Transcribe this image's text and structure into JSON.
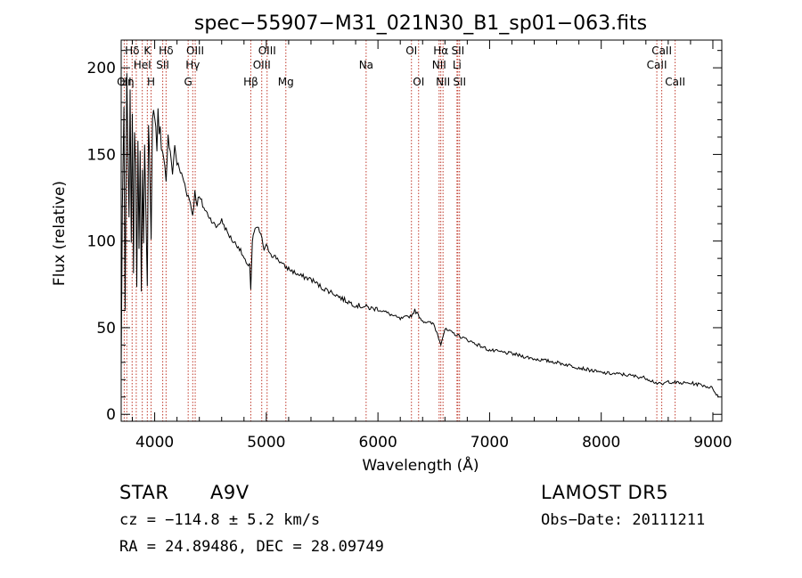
{
  "chart_data": {
    "type": "line",
    "title": "spec−55907−M31_021N30_B1_sp01−063.fits",
    "xlabel": "Wavelength (Å)",
    "ylabel": "Flux (relative)",
    "xlim": [
      3700,
      9080
    ],
    "ylim": [
      -4,
      216
    ],
    "xticks": [
      4000,
      5000,
      6000,
      7000,
      8000,
      9000
    ],
    "yticks": [
      0,
      50,
      100,
      150,
      200
    ],
    "series": [
      {
        "x": [
          3700,
          3710,
          3725,
          3735,
          3750,
          3760,
          3770,
          3780,
          3790,
          3800,
          3810,
          3820,
          3830,
          3840,
          3850,
          3860,
          3870,
          3880,
          3890,
          3900,
          3910,
          3920,
          3934,
          3945,
          3955,
          3968,
          3980,
          3990,
          4000,
          4010,
          4020,
          4030,
          4040,
          4050,
          4060,
          4080,
          4102,
          4120,
          4140,
          4160,
          4180,
          4200,
          4230,
          4260,
          4290,
          4320,
          4340,
          4360,
          4380,
          4400,
          4450,
          4500,
          4550,
          4600,
          4650,
          4700,
          4750,
          4800,
          4830,
          4850,
          4861,
          4875,
          4890,
          4920,
          4950,
          4980,
          5000,
          5050,
          5100,
          5150,
          5200,
          5300,
          5400,
          5500,
          5600,
          5700,
          5800,
          5895,
          5950,
          6000,
          6100,
          6200,
          6300,
          6330,
          6400,
          6500,
          6563,
          6600,
          6700,
          6800,
          6900,
          7000,
          7200,
          7400,
          7600,
          7800,
          8000,
          8200,
          8400,
          8500,
          8542,
          8600,
          8700,
          8800,
          8900,
          9000,
          9030,
          9050
        ],
        "y": [
          25,
          120,
          175,
          60,
          195,
          150,
          115,
          185,
          100,
          175,
          80,
          165,
          145,
          75,
          160,
          95,
          150,
          70,
          140,
          100,
          155,
          120,
          75,
          165,
          150,
          100,
          172,
          178,
          170,
          165,
          150,
          175,
          160,
          165,
          155,
          150,
          135,
          160,
          150,
          140,
          155,
          145,
          140,
          135,
          128,
          122,
          115,
          128,
          122,
          125,
          118,
          113,
          108,
          112,
          105,
          100,
          97,
          90,
          85,
          88,
          72,
          100,
          105,
          108,
          104,
          95,
          97,
          92,
          90,
          86,
          84,
          80,
          78,
          73,
          70,
          66,
          63,
          62,
          61,
          61,
          58,
          55,
          57,
          60,
          54,
          52,
          41,
          49,
          46,
          43,
          40,
          37,
          35,
          32,
          30,
          27,
          24,
          23,
          21,
          18,
          17,
          19,
          18,
          18,
          17,
          15,
          12,
          10
        ]
      }
    ],
    "lines": [
      {
        "wl": 3727,
        "label": "OII",
        "row": 3
      },
      {
        "wl": 3750,
        "label": "Hη",
        "row": 3
      },
      {
        "wl": 3798,
        "label": "Hδ",
        "row": 1
      },
      {
        "wl": 3835,
        "label": "",
        "row": 0
      },
      {
        "wl": 3889,
        "label": "HeI",
        "row": 2
      },
      {
        "wl": 3934,
        "label": "K",
        "row": 1
      },
      {
        "wl": 3968,
        "label": "H",
        "row": 3
      },
      {
        "wl": 4072,
        "label": "SII",
        "row": 2
      },
      {
        "wl": 4102,
        "label": "Hδ",
        "row": 1
      },
      {
        "wl": 4300,
        "label": "G",
        "row": 3
      },
      {
        "wl": 4341,
        "label": "Hγ",
        "row": 2
      },
      {
        "wl": 4363,
        "label": "OIII",
        "row": 1
      },
      {
        "wl": 4861,
        "label": "Hβ",
        "row": 3
      },
      {
        "wl": 4959,
        "label": "OIII",
        "row": 2
      },
      {
        "wl": 5007,
        "label": "OIII",
        "row": 1
      },
      {
        "wl": 5175,
        "label": "Mg",
        "row": 3
      },
      {
        "wl": 5894,
        "label": "Na",
        "row": 2
      },
      {
        "wl": 6300,
        "label": "OI",
        "row": 1
      },
      {
        "wl": 6364,
        "label": "OI",
        "row": 3
      },
      {
        "wl": 6548,
        "label": "NII",
        "row": 2
      },
      {
        "wl": 6563,
        "label": "Hα",
        "row": 1
      },
      {
        "wl": 6583,
        "label": "NII",
        "row": 3
      },
      {
        "wl": 6708,
        "label": "Li",
        "row": 2
      },
      {
        "wl": 6716,
        "label": "SII",
        "row": 1
      },
      {
        "wl": 6731,
        "label": "SII",
        "row": 3
      },
      {
        "wl": 8498,
        "label": "CaII",
        "row": 2
      },
      {
        "wl": 8542,
        "label": "CaII",
        "row": 1
      },
      {
        "wl": 8662,
        "label": "CaII",
        "row": 3
      }
    ],
    "grid": false,
    "line_marker_color": "#c0392b",
    "spectrum_color": "#000000"
  },
  "info": {
    "object_class": "STAR",
    "subclass": "A9V",
    "survey": "LAMOST DR5",
    "redshift": "cz = −114.8 ± 5.2 km/s",
    "obs_date": "Obs−Date: 20111211",
    "coords": "RA =  24.89486, DEC =  28.09749"
  }
}
